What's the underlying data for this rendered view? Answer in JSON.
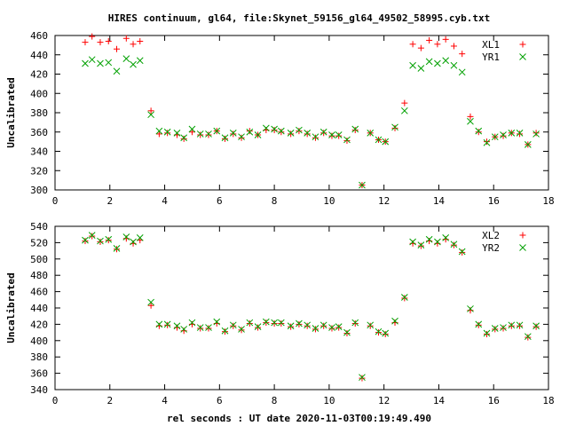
{
  "figure": {
    "title": "HIRES continuum, gl64, file:Skynet_59156_gl64_49502_58995.cyb.txt",
    "xlabel": "rel seconds : UT date 2020-11-03T00:19:49.490"
  },
  "colors": {
    "red": "#ff0000",
    "green": "#00a000",
    "axis": "#000000"
  },
  "chart_data": [
    {
      "type": "scatter",
      "title": "HIRES continuum, gl64, file:Skynet_59156_gl64_49502_58995.cyb.txt",
      "xlabel": "",
      "ylabel": "Uncalibrated",
      "xlim": [
        0,
        18
      ],
      "ylim": [
        300,
        460
      ],
      "xticks": [
        0,
        2,
        4,
        6,
        8,
        10,
        12,
        14,
        16,
        18
      ],
      "yticks": [
        300,
        320,
        340,
        360,
        380,
        400,
        420,
        440,
        460
      ],
      "grid": false,
      "legend_position": "top-right",
      "x": [
        1.1,
        1.35,
        1.65,
        1.95,
        2.25,
        2.6,
        2.85,
        3.1,
        3.5,
        3.8,
        4.1,
        4.45,
        4.7,
        5.0,
        5.3,
        5.6,
        5.9,
        6.2,
        6.5,
        6.8,
        7.1,
        7.4,
        7.7,
        8.0,
        8.25,
        8.6,
        8.9,
        9.2,
        9.5,
        9.8,
        10.1,
        10.35,
        10.65,
        10.95,
        11.2,
        11.5,
        11.8,
        12.05,
        12.4,
        12.75,
        13.05,
        13.35,
        13.65,
        13.95,
        14.25,
        14.55,
        14.85,
        15.15,
        15.45,
        15.75,
        16.05,
        16.35,
        16.65,
        16.95,
        17.25,
        17.55
      ],
      "series": [
        {
          "name": "XL1",
          "marker": "plus",
          "color": "#ff0000",
          "values": [
            453,
            459,
            453,
            454,
            446,
            457,
            451,
            454,
            382,
            358,
            359,
            357,
            353,
            360,
            357,
            357,
            361,
            353,
            358,
            354,
            361,
            357,
            362,
            362,
            360,
            358,
            361,
            358,
            354,
            359,
            356,
            356,
            351,
            362,
            305,
            359,
            352,
            350,
            364,
            390,
            451,
            447,
            455,
            451,
            456,
            449,
            441,
            376,
            360,
            350,
            355,
            356,
            359,
            358,
            347,
            359
          ]
        },
        {
          "name": "YR1",
          "marker": "cross",
          "color": "#00a000",
          "values": [
            431,
            435,
            431,
            432,
            423,
            436,
            430,
            434,
            378,
            361,
            360,
            359,
            354,
            363,
            358,
            358,
            361,
            354,
            359,
            355,
            360,
            357,
            364,
            363,
            361,
            359,
            362,
            359,
            355,
            360,
            357,
            357,
            352,
            363,
            305,
            359,
            352,
            350,
            365,
            382,
            429,
            426,
            433,
            431,
            434,
            429,
            422,
            371,
            361,
            349,
            355,
            357,
            359,
            359,
            347,
            358
          ]
        }
      ]
    },
    {
      "type": "scatter",
      "title": "",
      "xlabel": "rel seconds : UT date 2020-11-03T00:19:49.490",
      "ylabel": "Uncalibrated",
      "xlim": [
        0,
        18
      ],
      "ylim": [
        340,
        540
      ],
      "xticks": [
        0,
        2,
        4,
        6,
        8,
        10,
        12,
        14,
        16,
        18
      ],
      "yticks": [
        340,
        360,
        380,
        400,
        420,
        440,
        460,
        480,
        500,
        520,
        540
      ],
      "grid": false,
      "legend_position": "top-right",
      "x": [
        1.1,
        1.35,
        1.65,
        1.95,
        2.25,
        2.6,
        2.85,
        3.1,
        3.5,
        3.8,
        4.1,
        4.45,
        4.7,
        5.0,
        5.3,
        5.6,
        5.9,
        6.2,
        6.5,
        6.8,
        7.1,
        7.4,
        7.7,
        8.0,
        8.25,
        8.6,
        8.9,
        9.2,
        9.5,
        9.8,
        10.1,
        10.35,
        10.65,
        10.95,
        11.2,
        11.5,
        11.8,
        12.05,
        12.4,
        12.75,
        13.05,
        13.35,
        13.65,
        13.95,
        14.25,
        14.55,
        14.85,
        15.15,
        15.45,
        15.75,
        16.05,
        16.35,
        16.65,
        16.95,
        17.25,
        17.55
      ],
      "series": [
        {
          "name": "XL2",
          "marker": "plus",
          "color": "#ff0000",
          "values": [
            522,
            528,
            521,
            523,
            512,
            525,
            519,
            523,
            443,
            418,
            419,
            416,
            412,
            420,
            415,
            415,
            421,
            411,
            418,
            413,
            421,
            416,
            422,
            421,
            421,
            417,
            420,
            418,
            414,
            418,
            415,
            416,
            409,
            421,
            354,
            418,
            410,
            408,
            422,
            452,
            519,
            516,
            522,
            519,
            524,
            517,
            508,
            437,
            419,
            408,
            414,
            415,
            418,
            418,
            404,
            417
          ]
        },
        {
          "name": "YR2",
          "marker": "cross",
          "color": "#00a000",
          "values": [
            523,
            529,
            522,
            524,
            513,
            527,
            521,
            526,
            447,
            420,
            420,
            418,
            414,
            422,
            416,
            416,
            423,
            412,
            419,
            414,
            422,
            417,
            423,
            422,
            422,
            418,
            421,
            419,
            415,
            419,
            416,
            417,
            410,
            422,
            355,
            419,
            411,
            409,
            424,
            453,
            521,
            517,
            524,
            521,
            526,
            518,
            509,
            439,
            420,
            409,
            415,
            416,
            419,
            419,
            405,
            418
          ]
        }
      ]
    }
  ]
}
